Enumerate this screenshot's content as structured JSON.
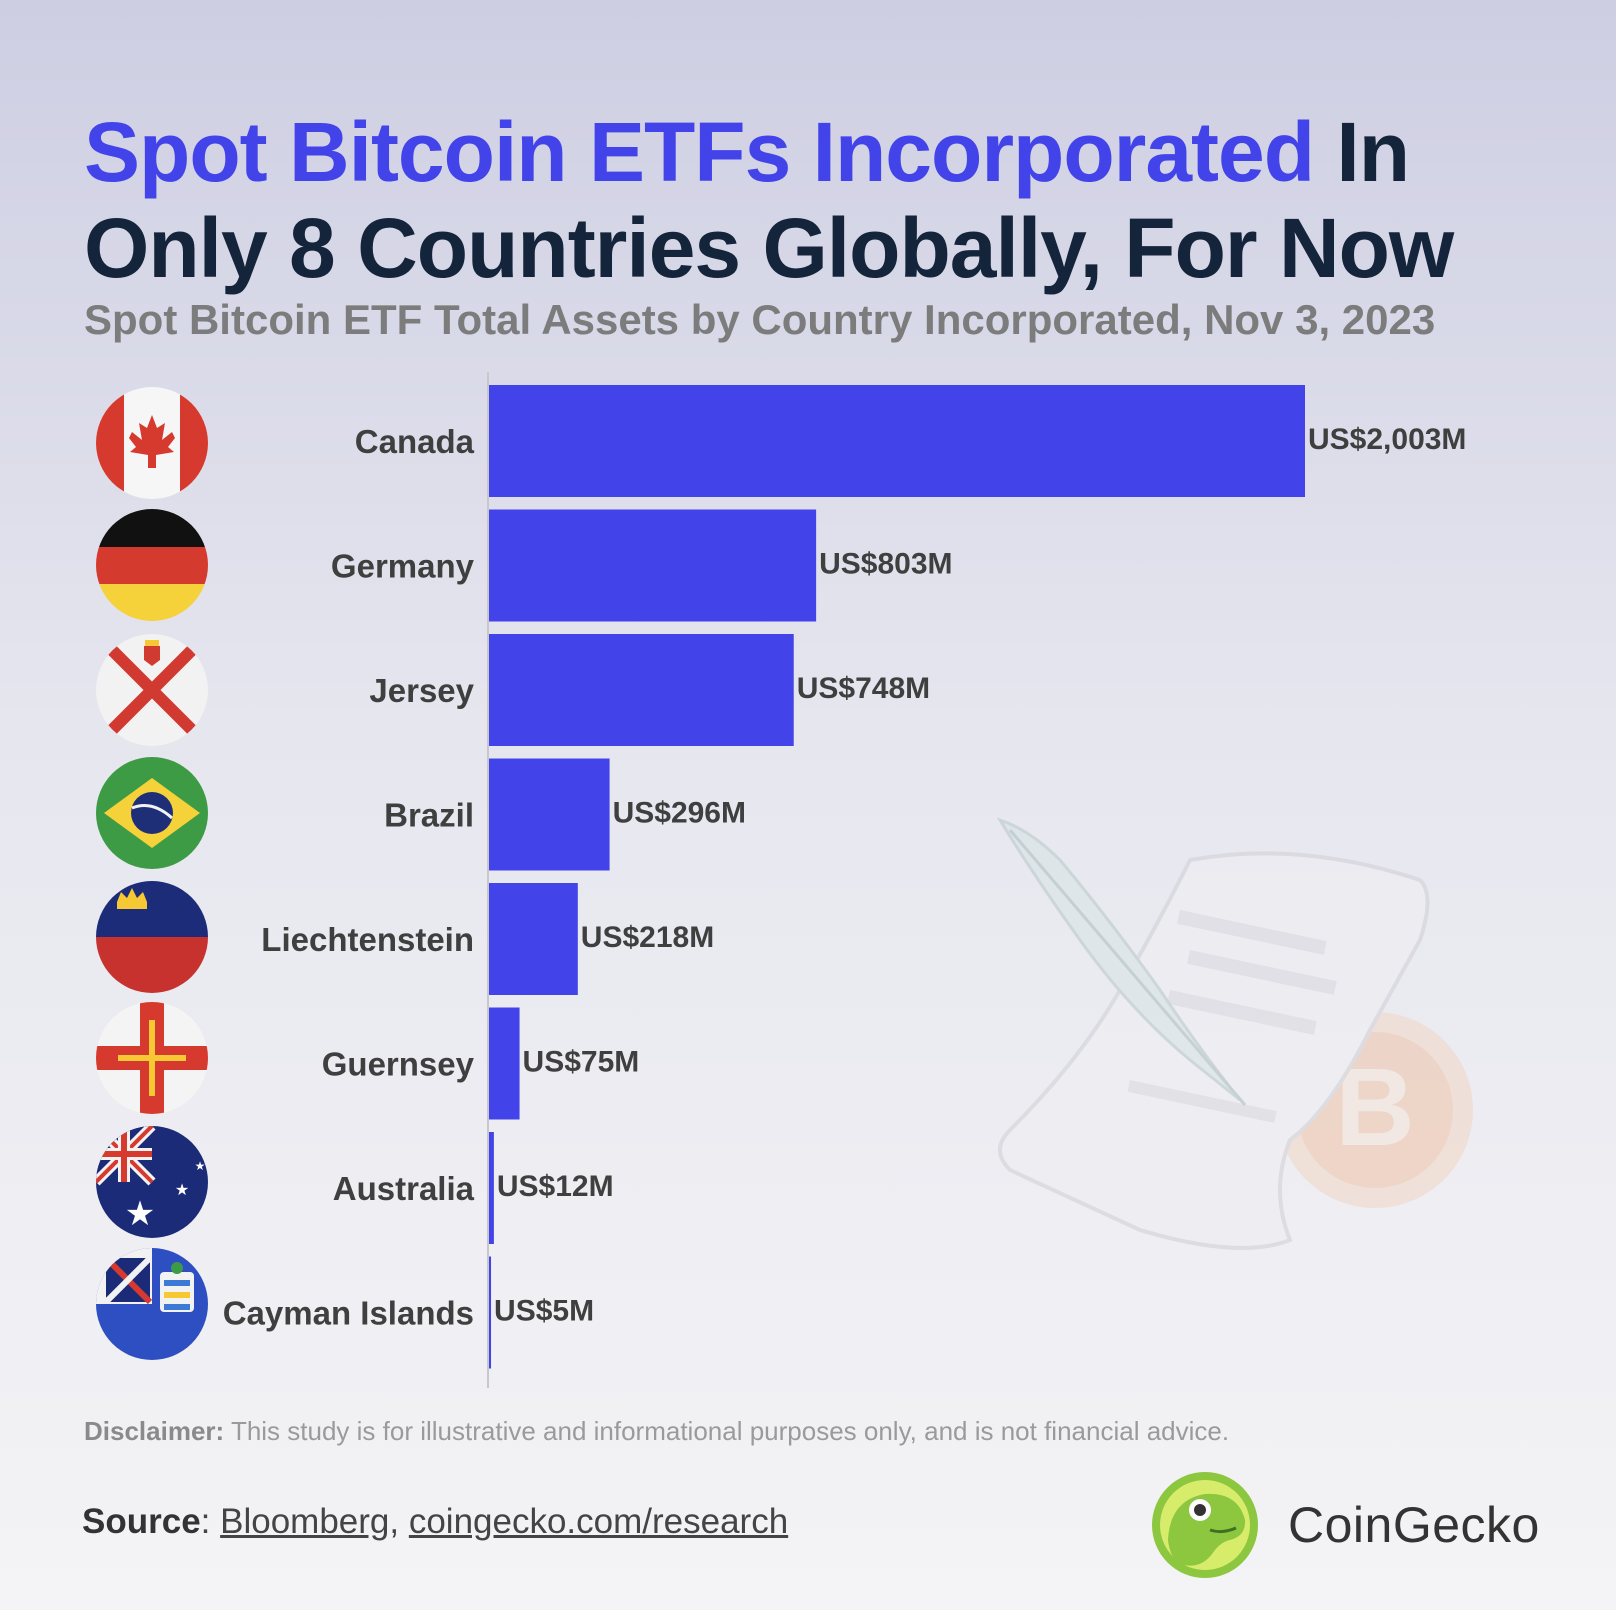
{
  "header": {
    "title_highlight": "Spot Bitcoin ETFs Incorporated",
    "title_rest": " In Only 8 Countries Globally, For Now",
    "subtitle": "Spot Bitcoin ETF Total Assets by Country Incorporated, Nov 3, 2023"
  },
  "chart_data": {
    "type": "bar",
    "orientation": "horizontal",
    "title": "Spot Bitcoin ETFs Incorporated In Only 8 Countries Globally, For Now",
    "subtitle": "Spot Bitcoin ETF Total Assets by Country Incorporated, Nov 3, 2023",
    "xlabel": "",
    "ylabel": "",
    "unit": "US$ millions",
    "xlim": [
      0,
      2003
    ],
    "grid": false,
    "bar_color": "#4343ea",
    "categories": [
      "Canada",
      "Germany",
      "Jersey",
      "Brazil",
      "Liechtenstein",
      "Guernsey",
      "Australia",
      "Cayman Islands"
    ],
    "values": [
      2003,
      803,
      748,
      296,
      218,
      75,
      12,
      5
    ],
    "value_labels": [
      "US$2,003M",
      "US$803M",
      "US$748M",
      "US$296M",
      "US$218M",
      "US$75M",
      "US$12M",
      "US$5M"
    ],
    "flag_icons": [
      "canada-flag-icon",
      "germany-flag-icon",
      "jersey-flag-icon",
      "brazil-flag-icon",
      "liechtenstein-flag-icon",
      "guernsey-flag-icon",
      "australia-flag-icon",
      "cayman-islands-flag-icon"
    ]
  },
  "footer": {
    "disclaimer_label": "Disclaimer:",
    "disclaimer_text": " This study is for illustrative and informational purposes only, and is not financial advice.",
    "source_label": "Source",
    "source_sep": ": ",
    "source_link1": "Bloomberg",
    "source_comma": ", ",
    "source_link2": "coingecko.com/research",
    "brand_name": "CoinGecko"
  },
  "colors": {
    "accent": "#4343ea",
    "title_dark": "#14243a",
    "subtitle_gray": "#7c7c7c"
  }
}
